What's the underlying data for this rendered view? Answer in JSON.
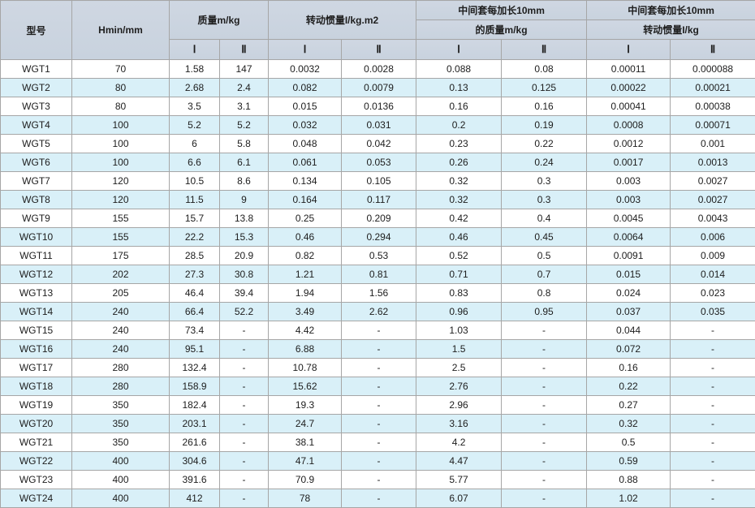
{
  "table": {
    "columns": {
      "model": "型号",
      "hmin": "Hmin/mm",
      "mass_group": "质量m/kg",
      "inertia_group": "转动惯量I/kg.m2",
      "ext_mass_line1": "中间套每加长10mm",
      "ext_mass_line2": "的质量m/kg",
      "ext_inertia_line1": "中间套每加长10mm",
      "ext_inertia_line2": "转动惯量I/kg",
      "sub_i": "Ⅰ",
      "sub_ii": "Ⅱ"
    },
    "rows": [
      [
        "WGT1",
        "70",
        "1.58",
        "147",
        "0.0032",
        "0.0028",
        "0.088",
        "0.08",
        "0.00011",
        "0.000088"
      ],
      [
        "WGT2",
        "80",
        "2.68",
        "2.4",
        "0.082",
        "0.0079",
        "0.13",
        "0.125",
        "0.00022",
        "0.00021"
      ],
      [
        "WGT3",
        "80",
        "3.5",
        "3.1",
        "0.015",
        "0.0136",
        "0.16",
        "0.16",
        "0.00041",
        "0.00038"
      ],
      [
        "WGT4",
        "100",
        "5.2",
        "5.2",
        "0.032",
        "0.031",
        "0.2",
        "0.19",
        "0.0008",
        "0.00071"
      ],
      [
        "WGT5",
        "100",
        "6",
        "5.8",
        "0.048",
        "0.042",
        "0.23",
        "0.22",
        "0.0012",
        "0.001"
      ],
      [
        "WGT6",
        "100",
        "6.6",
        "6.1",
        "0.061",
        "0.053",
        "0.26",
        "0.24",
        "0.0017",
        "0.0013"
      ],
      [
        "WGT7",
        "120",
        "10.5",
        "8.6",
        "0.134",
        "0.105",
        "0.32",
        "0.3",
        "0.003",
        "0.0027"
      ],
      [
        "WGT8",
        "120",
        "11.5",
        "9",
        "0.164",
        "0.117",
        "0.32",
        "0.3",
        "0.003",
        "0.0027"
      ],
      [
        "WGT9",
        "155",
        "15.7",
        "13.8",
        "0.25",
        "0.209",
        "0.42",
        "0.4",
        "0.0045",
        "0.0043"
      ],
      [
        "WGT10",
        "155",
        "22.2",
        "15.3",
        "0.46",
        "0.294",
        "0.46",
        "0.45",
        "0.0064",
        "0.006"
      ],
      [
        "WGT11",
        "175",
        "28.5",
        "20.9",
        "0.82",
        "0.53",
        "0.52",
        "0.5",
        "0.0091",
        "0.009"
      ],
      [
        "WGT12",
        "202",
        "27.3",
        "30.8",
        "1.21",
        "0.81",
        "0.71",
        "0.7",
        "0.015",
        "0.014"
      ],
      [
        "WGT13",
        "205",
        "46.4",
        "39.4",
        "1.94",
        "1.56",
        "0.83",
        "0.8",
        "0.024",
        "0.023"
      ],
      [
        "WGT14",
        "240",
        "66.4",
        "52.2",
        "3.49",
        "2.62",
        "0.96",
        "0.95",
        "0.037",
        "0.035"
      ],
      [
        "WGT15",
        "240",
        "73.4",
        "-",
        "4.42",
        "-",
        "1.03",
        "-",
        "0.044",
        "-"
      ],
      [
        "WGT16",
        "240",
        "95.1",
        "-",
        "6.88",
        "-",
        "1.5",
        "-",
        "0.072",
        "-"
      ],
      [
        "WGT17",
        "280",
        "132.4",
        "-",
        "10.78",
        "-",
        "2.5",
        "-",
        "0.16",
        "-"
      ],
      [
        "WGT18",
        "280",
        "158.9",
        "-",
        "15.62",
        "-",
        "2.76",
        "-",
        "0.22",
        "-"
      ],
      [
        "WGT19",
        "350",
        "182.4",
        "-",
        "19.3",
        "-",
        "2.96",
        "-",
        "0.27",
        "-"
      ],
      [
        "WGT20",
        "350",
        "203.1",
        "-",
        "24.7",
        "-",
        "3.16",
        "-",
        "0.32",
        "-"
      ],
      [
        "WGT21",
        "350",
        "261.6",
        "-",
        "38.1",
        "-",
        "4.2",
        "-",
        "0.5",
        "-"
      ],
      [
        "WGT22",
        "400",
        "304.6",
        "-",
        "47.1",
        "-",
        "4.47",
        "-",
        "0.59",
        "-"
      ],
      [
        "WGT23",
        "400",
        "391.6",
        "-",
        "70.9",
        "-",
        "5.77",
        "-",
        "0.88",
        "-"
      ],
      [
        "WGT24",
        "400",
        "412",
        "-",
        "78",
        "-",
        "6.07",
        "-",
        "1.02",
        "-"
      ]
    ]
  },
  "colors": {
    "header_bg": "#cfd7e2",
    "row_alt_bg": "#d9f0f8",
    "border": "#a6a6a6",
    "text": "#1d1d1d"
  }
}
